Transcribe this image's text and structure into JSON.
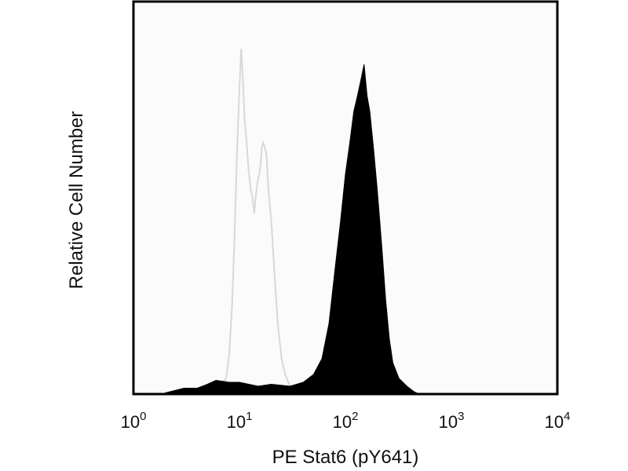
{
  "chart_data": {
    "type": "area",
    "x_scale": "log",
    "xlim": [
      1,
      10000
    ],
    "ylim": [
      0,
      100
    ],
    "grid": false,
    "legend": "none",
    "xlabel": "PE Stat6 (pY641)",
    "ylabel": "Relative Cell Number",
    "x_ticks": [
      {
        "base": "10",
        "exp": "0",
        "value": 1
      },
      {
        "base": "10",
        "exp": "1",
        "value": 10
      },
      {
        "base": "10",
        "exp": "2",
        "value": 100
      },
      {
        "base": "10",
        "exp": "3",
        "value": 1000
      },
      {
        "base": "10",
        "exp": "4",
        "value": 10000
      }
    ],
    "series": [
      {
        "style": "outline",
        "color": "#d8d8d8",
        "points": [
          [
            4.5,
            0
          ],
          [
            5.5,
            0.8
          ],
          [
            6.5,
            2
          ],
          [
            7.5,
            4
          ],
          [
            8.0,
            10
          ],
          [
            8.5,
            22
          ],
          [
            9.0,
            40
          ],
          [
            9.5,
            62
          ],
          [
            10.0,
            78
          ],
          [
            10.4,
            88
          ],
          [
            10.8,
            80
          ],
          [
            11.2,
            70
          ],
          [
            11.7,
            64
          ],
          [
            12.2,
            57
          ],
          [
            12.8,
            52
          ],
          [
            13.3,
            50
          ],
          [
            13.8,
            46
          ],
          [
            14.2,
            50
          ],
          [
            14.8,
            54
          ],
          [
            15.4,
            56
          ],
          [
            15.8,
            58
          ],
          [
            16.3,
            63
          ],
          [
            16.8,
            64
          ],
          [
            17.3,
            63
          ],
          [
            18.0,
            61
          ],
          [
            18.8,
            52
          ],
          [
            20.0,
            44
          ],
          [
            21.5,
            30
          ],
          [
            23.0,
            18
          ],
          [
            25.0,
            9
          ],
          [
            27.0,
            5
          ],
          [
            30.0,
            2
          ],
          [
            34.0,
            0.8
          ],
          [
            40.0,
            0
          ]
        ]
      },
      {
        "style": "filled",
        "color": "#000000",
        "points": [
          [
            2.0,
            0.3
          ],
          [
            3.0,
            1.5
          ],
          [
            4.0,
            1.5
          ],
          [
            5.0,
            2.5
          ],
          [
            6.0,
            3.5
          ],
          [
            8.0,
            3
          ],
          [
            10.0,
            3
          ],
          [
            15.0,
            2
          ],
          [
            20.0,
            2.5
          ],
          [
            30.0,
            2
          ],
          [
            40.0,
            3
          ],
          [
            50.0,
            5
          ],
          [
            60.0,
            9
          ],
          [
            70.0,
            18
          ],
          [
            80.0,
            32
          ],
          [
            90.0,
            44
          ],
          [
            100.0,
            56
          ],
          [
            110.0,
            64
          ],
          [
            120.0,
            72
          ],
          [
            130.0,
            76
          ],
          [
            140.0,
            80
          ],
          [
            150.0,
            84
          ],
          [
            160.0,
            76
          ],
          [
            170.0,
            72
          ],
          [
            185.0,
            62
          ],
          [
            200.0,
            52
          ],
          [
            220.0,
            38
          ],
          [
            240.0,
            24
          ],
          [
            260.0,
            14
          ],
          [
            280.0,
            8
          ],
          [
            320.0,
            4
          ],
          [
            380.0,
            2
          ],
          [
            450.0,
            0.5
          ],
          [
            500.0,
            0
          ]
        ]
      }
    ]
  }
}
